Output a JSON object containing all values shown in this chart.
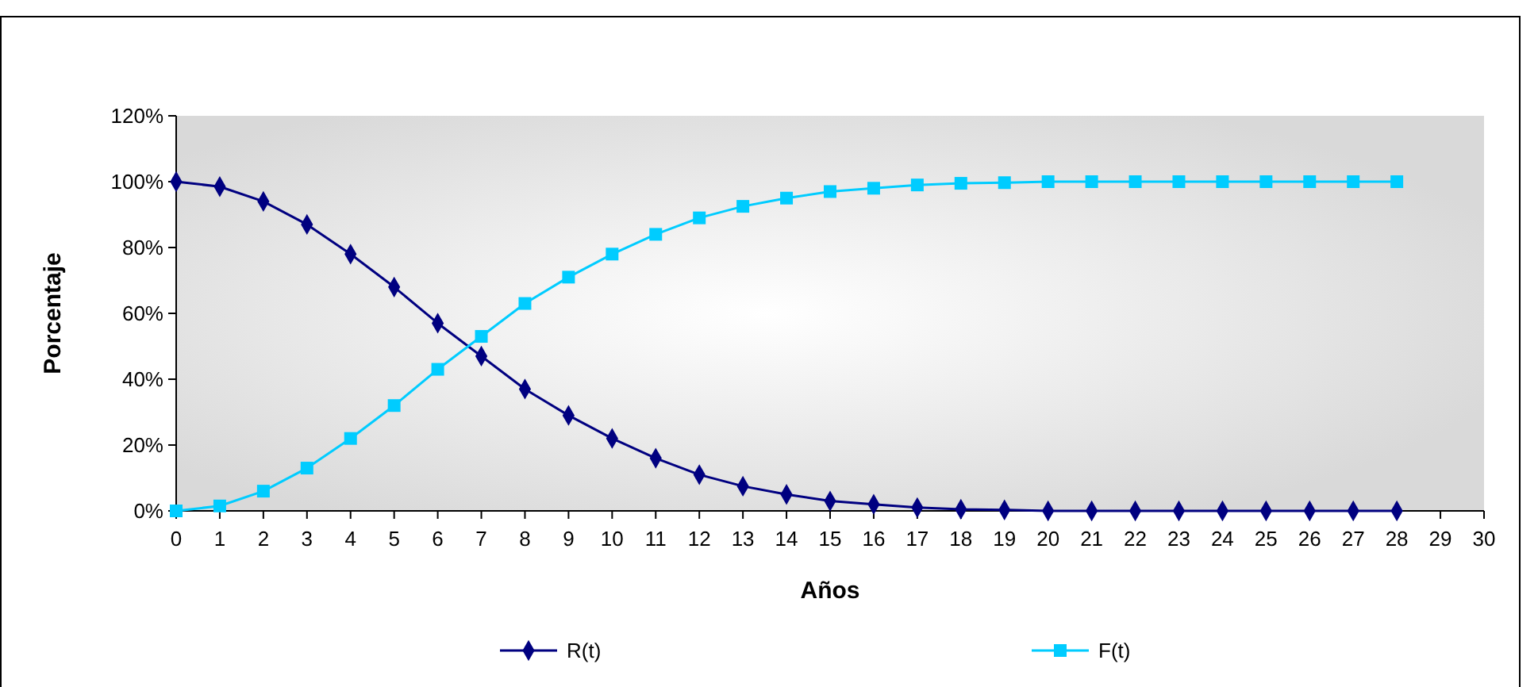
{
  "chart_data": {
    "type": "line",
    "xlabel": "Años",
    "ylabel": "Porcentaje",
    "x": [
      0,
      1,
      2,
      3,
      4,
      5,
      6,
      7,
      8,
      9,
      10,
      11,
      12,
      13,
      14,
      15,
      16,
      17,
      18,
      19,
      20,
      21,
      22,
      23,
      24,
      25,
      26,
      27,
      28
    ],
    "xlim": [
      0,
      30
    ],
    "xticks": [
      0,
      1,
      2,
      3,
      4,
      5,
      6,
      7,
      8,
      9,
      10,
      11,
      12,
      13,
      14,
      15,
      16,
      17,
      18,
      19,
      20,
      21,
      22,
      23,
      24,
      25,
      26,
      27,
      28,
      29,
      30
    ],
    "ylim": [
      0,
      120
    ],
    "yticks": [
      {
        "value": 0,
        "label": "0%"
      },
      {
        "value": 20,
        "label": "20%"
      },
      {
        "value": 40,
        "label": "40%"
      },
      {
        "value": 60,
        "label": "60%"
      },
      {
        "value": 80,
        "label": "80%"
      },
      {
        "value": 100,
        "label": "100%"
      },
      {
        "value": 120,
        "label": "120%"
      }
    ],
    "series": [
      {
        "name": "R(t)",
        "color": "#000080",
        "marker": "diamond",
        "values": [
          100,
          98.5,
          94,
          87,
          78,
          68,
          57,
          47,
          37,
          29,
          22,
          16,
          11,
          7.5,
          5,
          3,
          2,
          1,
          0.5,
          0.3,
          0,
          0,
          0,
          0,
          0,
          0,
          0,
          0,
          0
        ]
      },
      {
        "name": "F(t)",
        "color": "#00ccff",
        "marker": "square",
        "values": [
          0,
          1.5,
          6,
          13,
          22,
          32,
          43,
          53,
          63,
          71,
          78,
          84,
          89,
          92.5,
          95,
          97,
          98,
          99,
          99.5,
          99.7,
          100,
          100,
          100,
          100,
          100,
          100,
          100,
          100,
          100
        ]
      }
    ],
    "grid": false,
    "legend": "bottom",
    "line_style": "solid"
  }
}
